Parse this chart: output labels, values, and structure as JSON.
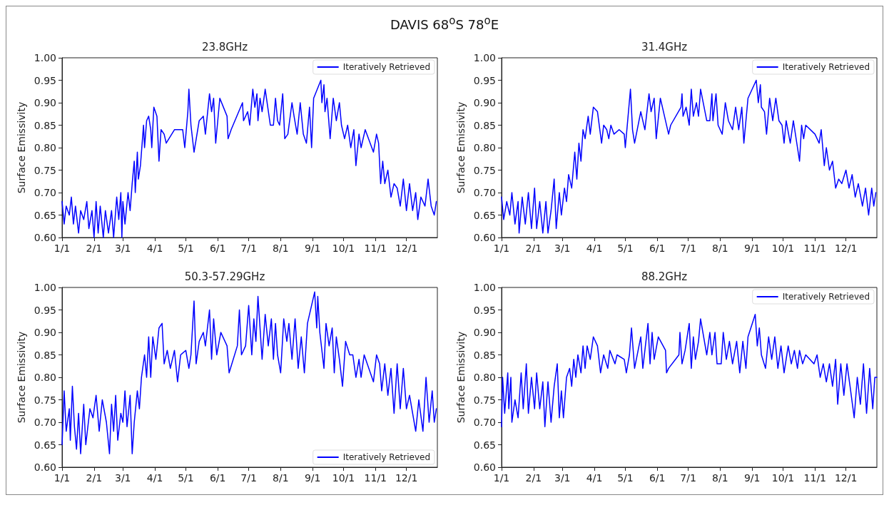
{
  "chart_data": [
    {
      "type": "line",
      "title": "DAVIS 68$^{o}$S 78$^{o}$E",
      "subtitle": "23.8GHz",
      "ylabel": "Surface Emissivity",
      "xlim": [
        "--01-01",
        "--12-31"
      ],
      "xticks": [
        {
          "value": "--01-01",
          "label": "1/1"
        },
        {
          "value": "--02-01",
          "label": "2/1"
        },
        {
          "value": "--03-01",
          "label": "3/1"
        },
        {
          "value": "--04-01",
          "label": "4/1"
        },
        {
          "value": "--05-01",
          "label": "5/1"
        },
        {
          "value": "--06-01",
          "label": "6/1"
        },
        {
          "value": "--07-01",
          "label": "7/1"
        },
        {
          "value": "--08-01",
          "label": "8/1"
        },
        {
          "value": "--09-01",
          "label": "9/1"
        },
        {
          "value": "--10-01",
          "label": "10/1"
        },
        {
          "value": "--11-01",
          "label": "11/1"
        },
        {
          "value": "--12-01",
          "label": "12/1"
        }
      ],
      "ylim": [
        0.6,
        1.0
      ],
      "yticks": [
        {
          "value": 0.6,
          "label": "0.60"
        },
        {
          "value": 0.65,
          "label": "0.65"
        },
        {
          "value": 0.7,
          "label": "0.70"
        },
        {
          "value": 0.75,
          "label": "0.75"
        },
        {
          "value": 0.8,
          "label": "0.80"
        },
        {
          "value": 0.85,
          "label": "0.85"
        },
        {
          "value": 0.9,
          "label": "0.90"
        },
        {
          "value": 0.95,
          "label": "0.95"
        },
        {
          "value": 1.0,
          "label": "1.00"
        }
      ],
      "grid": false,
      "legend": "top right",
      "marker": "none",
      "line_style": "solid",
      "series": [
        {
          "name": "Iteratively Retrieved",
          "color": "#0000ff",
          "x": [
            "--01-01",
            "--01-03",
            "--01-05",
            "--01-08",
            "--01-10",
            "--01-12",
            "--01-14",
            "--01-17",
            "--01-19",
            "--01-22",
            "--01-25",
            "--01-27",
            "--01-30",
            "--02-01",
            "--02-03",
            "--02-05",
            "--02-07",
            "--02-10",
            "--02-12",
            "--02-15",
            "--02-18",
            "--02-20",
            "--02-23",
            "--02-25",
            "--02-27",
            "--02-28",
            "--03-01",
            "--03-03",
            "--03-06",
            "--03-08",
            "--03-10",
            "--03-12",
            "--03-13",
            "--03-15",
            "--03-16",
            "--03-18",
            "--03-20",
            "--03-21",
            "--03-22",
            "--03-24",
            "--03-26",
            "--03-28",
            "--03-29",
            "--03-31",
            "--04-03",
            "--04-05",
            "--04-07",
            "--04-10",
            "--04-12",
            "--04-20",
            "--04-28",
            "--04-30",
            "--05-03",
            "--05-04",
            "--05-06",
            "--05-09",
            "--05-14",
            "--05-18",
            "--05-20",
            "--05-24",
            "--05-26",
            "--05-28",
            "--05-30",
            "--06-03",
            "--06-10",
            "--06-11",
            "--06-14",
            "--06-25",
            "--06-26",
            "--06-30",
            "--07-02",
            "--07-05",
            "--07-07",
            "--07-09",
            "--07-10",
            "--07-12",
            "--07-14",
            "--07-17",
            "--07-22",
            "--07-25",
            "--07-27",
            "--07-29",
            "--07-31",
            "--08-03",
            "--08-05",
            "--08-08",
            "--08-12",
            "--08-14",
            "--08-17",
            "--08-20",
            "--08-23",
            "--08-26",
            "--08-29",
            "--08-31",
            "--09-02",
            "--09-09",
            "--09-10",
            "--09-12",
            "--09-13",
            "--09-15",
            "--09-18",
            "--09-21",
            "--09-24",
            "--09-27",
            "--09-29",
            "--10-02",
            "--10-05",
            "--10-08",
            "--10-11",
            "--10-13",
            "--10-16",
            "--10-18",
            "--10-22",
            "--10-30",
            "--11-02",
            "--11-04",
            "--11-06",
            "--11-08",
            "--11-10",
            "--11-13",
            "--11-16",
            "--11-19",
            "--11-22",
            "--11-25",
            "--11-28",
            "--12-01",
            "--12-04",
            "--12-07",
            "--12-10",
            "--12-12",
            "--12-15",
            "--12-19",
            "--12-22",
            "--12-25",
            "--12-28",
            "--12-30"
          ],
          "values": [
            0.68,
            0.63,
            0.67,
            0.65,
            0.69,
            0.63,
            0.67,
            0.61,
            0.66,
            0.64,
            0.68,
            0.62,
            0.66,
            0.6,
            0.68,
            0.61,
            0.67,
            0.6,
            0.66,
            0.61,
            0.66,
            0.6,
            0.69,
            0.64,
            0.7,
            0.6,
            0.68,
            0.63,
            0.7,
            0.66,
            0.72,
            0.77,
            0.7,
            0.79,
            0.73,
            0.76,
            0.82,
            0.85,
            0.8,
            0.86,
            0.87,
            0.84,
            0.8,
            0.89,
            0.87,
            0.77,
            0.84,
            0.83,
            0.81,
            0.84,
            0.84,
            0.8,
            0.88,
            0.93,
            0.85,
            0.79,
            0.86,
            0.87,
            0.83,
            0.92,
            0.88,
            0.91,
            0.81,
            0.91,
            0.87,
            0.82,
            0.84,
            0.9,
            0.86,
            0.88,
            0.85,
            0.93,
            0.89,
            0.92,
            0.86,
            0.91,
            0.88,
            0.93,
            0.85,
            0.85,
            0.91,
            0.86,
            0.85,
            0.92,
            0.82,
            0.83,
            0.9,
            0.87,
            0.83,
            0.9,
            0.83,
            0.81,
            0.89,
            0.8,
            0.91,
            0.95,
            0.9,
            0.94,
            0.88,
            0.91,
            0.82,
            0.91,
            0.86,
            0.9,
            0.85,
            0.82,
            0.85,
            0.8,
            0.84,
            0.76,
            0.83,
            0.8,
            0.84,
            0.79,
            0.83,
            0.81,
            0.72,
            0.77,
            0.72,
            0.75,
            0.69,
            0.72,
            0.71,
            0.67,
            0.73,
            0.66,
            0.72,
            0.66,
            0.7,
            0.64,
            0.69,
            0.67,
            0.73,
            0.67,
            0.65,
            0.68
          ]
        }
      ]
    },
    {
      "type": "line",
      "title": "31.4GHz",
      "ylabel": "Surface Emissivity",
      "xlim": [
        "--01-01",
        "--12-31"
      ],
      "xticks": [
        {
          "value": "--01-01",
          "label": "1/1"
        },
        {
          "value": "--02-01",
          "label": "2/1"
        },
        {
          "value": "--03-01",
          "label": "3/1"
        },
        {
          "value": "--04-01",
          "label": "4/1"
        },
        {
          "value": "--05-01",
          "label": "5/1"
        },
        {
          "value": "--06-01",
          "label": "6/1"
        },
        {
          "value": "--07-01",
          "label": "7/1"
        },
        {
          "value": "--08-01",
          "label": "8/1"
        },
        {
          "value": "--09-01",
          "label": "9/1"
        },
        {
          "value": "--10-01",
          "label": "10/1"
        },
        {
          "value": "--11-01",
          "label": "11/1"
        },
        {
          "value": "--12-01",
          "label": "12/1"
        }
      ],
      "ylim": [
        0.6,
        1.0
      ],
      "yticks": [
        {
          "value": 0.6,
          "label": "0.60"
        },
        {
          "value": 0.65,
          "label": "0.65"
        },
        {
          "value": 0.7,
          "label": "0.70"
        },
        {
          "value": 0.75,
          "label": "0.75"
        },
        {
          "value": 0.8,
          "label": "0.80"
        },
        {
          "value": 0.85,
          "label": "0.85"
        },
        {
          "value": 0.9,
          "label": "0.90"
        },
        {
          "value": 0.95,
          "label": "0.95"
        },
        {
          "value": 1.0,
          "label": "1.00"
        }
      ],
      "grid": false,
      "legend": "top right",
      "marker": "none",
      "line_style": "solid",
      "series": [
        {
          "name": "Iteratively Retrieved",
          "color": "#0000ff",
          "x": [
            "--01-01",
            "--01-03",
            "--01-06",
            "--01-09",
            "--01-11",
            "--01-14",
            "--01-17",
            "--01-18",
            "--01-21",
            "--01-24",
            "--01-27",
            "--01-30",
            "--02-02",
            "--02-04",
            "--02-07",
            "--02-10",
            "--02-13",
            "--02-15",
            "--02-18",
            "--02-21",
            "--02-23",
            "--02-26",
            "--02-28",
            "--03-03",
            "--03-05",
            "--03-07",
            "--03-10",
            "--03-13",
            "--03-15",
            "--03-17",
            "--03-19",
            "--03-21",
            "--03-23",
            "--03-26",
            "--03-28",
            "--03-31",
            "--04-04",
            "--04-08",
            "--04-10",
            "--04-13",
            "--04-15",
            "--04-17",
            "--04-20",
            "--04-25",
            "--04-30",
            "--05-01",
            "--05-06",
            "--05-08",
            "--05-10",
            "--05-16",
            "--05-20",
            "--05-24",
            "--05-26",
            "--05-29",
            "--05-31",
            "--06-04",
            "--06-12",
            "--06-14",
            "--06-24",
            "--06-25",
            "--06-26",
            "--06-29",
            "--07-02",
            "--07-04",
            "--07-06",
            "--07-09",
            "--07-11",
            "--07-13",
            "--07-19",
            "--07-22",
            "--07-24",
            "--07-25",
            "--07-28",
            "--07-30",
            "--08-03",
            "--08-06",
            "--08-09",
            "--08-13",
            "--08-16",
            "--08-19",
            "--08-22",
            "--08-24",
            "--08-28",
            "--09-05",
            "--09-07",
            "--09-09",
            "--09-10",
            "--09-13",
            "--09-15",
            "--09-18",
            "--09-21",
            "--09-24",
            "--09-27",
            "--09-30",
            "--10-02",
            "--10-04",
            "--10-08",
            "--10-11",
            "--10-15",
            "--10-17",
            "--10-19",
            "--10-21",
            "--10-23",
            "--11-01",
            "--11-05",
            "--11-07",
            "--11-10",
            "--11-12",
            "--11-15",
            "--11-18",
            "--11-21",
            "--11-24",
            "--11-27",
            "--12-01",
            "--12-04",
            "--12-07",
            "--12-10",
            "--12-13",
            "--12-17",
            "--12-20",
            "--12-23",
            "--12-26",
            "--12-28",
            "--12-30"
          ],
          "values": [
            0.69,
            0.64,
            0.68,
            0.65,
            0.7,
            0.63,
            0.68,
            0.61,
            0.69,
            0.63,
            0.7,
            0.62,
            0.71,
            0.62,
            0.68,
            0.61,
            0.68,
            0.61,
            0.66,
            0.73,
            0.62,
            0.7,
            0.65,
            0.71,
            0.68,
            0.74,
            0.71,
            0.79,
            0.73,
            0.81,
            0.77,
            0.84,
            0.82,
            0.87,
            0.83,
            0.89,
            0.88,
            0.81,
            0.85,
            0.84,
            0.82,
            0.85,
            0.83,
            0.84,
            0.83,
            0.8,
            0.93,
            0.84,
            0.81,
            0.88,
            0.84,
            0.92,
            0.88,
            0.91,
            0.82,
            0.91,
            0.83,
            0.85,
            0.89,
            0.92,
            0.87,
            0.89,
            0.85,
            0.93,
            0.87,
            0.9,
            0.87,
            0.93,
            0.86,
            0.86,
            0.92,
            0.86,
            0.92,
            0.85,
            0.83,
            0.9,
            0.86,
            0.84,
            0.89,
            0.84,
            0.89,
            0.81,
            0.91,
            0.95,
            0.9,
            0.94,
            0.89,
            0.88,
            0.83,
            0.91,
            0.86,
            0.91,
            0.86,
            0.85,
            0.81,
            0.86,
            0.81,
            0.86,
            0.8,
            0.77,
            0.85,
            0.82,
            0.85,
            0.83,
            0.81,
            0.84,
            0.76,
            0.8,
            0.75,
            0.77,
            0.71,
            0.73,
            0.72,
            0.75,
            0.71,
            0.74,
            0.69,
            0.72,
            0.67,
            0.71,
            0.65,
            0.71,
            0.67,
            0.7
          ]
        }
      ]
    },
    {
      "type": "line",
      "title": "50.3-57.29GHz",
      "ylabel": "Surface Emissivity",
      "xlim": [
        "--01-01",
        "--12-31"
      ],
      "xticks": [
        {
          "value": "--01-01",
          "label": "1/1"
        },
        {
          "value": "--02-01",
          "label": "2/1"
        },
        {
          "value": "--03-01",
          "label": "3/1"
        },
        {
          "value": "--04-01",
          "label": "4/1"
        },
        {
          "value": "--05-01",
          "label": "5/1"
        },
        {
          "value": "--06-01",
          "label": "6/1"
        },
        {
          "value": "--07-01",
          "label": "7/1"
        },
        {
          "value": "--08-01",
          "label": "8/1"
        },
        {
          "value": "--09-01",
          "label": "9/1"
        },
        {
          "value": "--10-01",
          "label": "10/1"
        },
        {
          "value": "--11-01",
          "label": "11/1"
        },
        {
          "value": "--12-01",
          "label": "12/1"
        }
      ],
      "ylim": [
        0.6,
        1.0
      ],
      "yticks": [
        {
          "value": 0.6,
          "label": "0.60"
        },
        {
          "value": 0.65,
          "label": "0.65"
        },
        {
          "value": 0.7,
          "label": "0.70"
        },
        {
          "value": 0.75,
          "label": "0.75"
        },
        {
          "value": 0.8,
          "label": "0.80"
        },
        {
          "value": 0.85,
          "label": "0.85"
        },
        {
          "value": 0.9,
          "label": "0.90"
        },
        {
          "value": 0.95,
          "label": "0.95"
        },
        {
          "value": 1.0,
          "label": "1.00"
        }
      ],
      "grid": false,
      "legend": "bottom right",
      "marker": "none",
      "line_style": "solid",
      "series": [
        {
          "name": "Iteratively Retrieved",
          "color": "#0000ff",
          "x": [
            "--01-01",
            "--01-03",
            "--01-05",
            "--01-08",
            "--01-09",
            "--01-11",
            "--01-13",
            "--01-15",
            "--01-17",
            "--01-19",
            "--01-22",
            "--01-24",
            "--01-28",
            "--01-31",
            "--02-03",
            "--02-06",
            "--02-09",
            "--02-13",
            "--02-16",
            "--02-18",
            "--02-20",
            "--02-22",
            "--02-24",
            "--02-27",
            "--03-01",
            "--03-03",
            "--03-05",
            "--03-08",
            "--03-10",
            "--03-12",
            "--03-15",
            "--03-17",
            "--03-19",
            "--03-22",
            "--03-24",
            "--03-26",
            "--03-28",
            "--03-30",
            "--04-02",
            "--04-05",
            "--04-08",
            "--04-10",
            "--04-13",
            "--04-16",
            "--04-20",
            "--04-23",
            "--04-26",
            "--05-01",
            "--05-04",
            "--05-06",
            "--05-09",
            "--05-11",
            "--05-14",
            "--05-18",
            "--05-20",
            "--05-24",
            "--05-26",
            "--05-28",
            "--05-31",
            "--06-04",
            "--06-10",
            "--06-12",
            "--06-20",
            "--06-22",
            "--06-24",
            "--06-28",
            "--07-01",
            "--07-04",
            "--07-06",
            "--07-08",
            "--07-10",
            "--07-14",
            "--07-17",
            "--07-20",
            "--07-23",
            "--07-25",
            "--07-27",
            "--07-29",
            "--08-01",
            "--08-04",
            "--08-07",
            "--08-09",
            "--08-12",
            "--08-15",
            "--08-18",
            "--08-21",
            "--08-24",
            "--08-27",
            "--09-03",
            "--09-05",
            "--09-06",
            "--09-08",
            "--09-12",
            "--09-14",
            "--09-17",
            "--09-20",
            "--09-22",
            "--09-24",
            "--09-27",
            "--09-30",
            "--10-03",
            "--10-07",
            "--10-10",
            "--10-13",
            "--10-16",
            "--10-18",
            "--10-21",
            "--10-30",
            "--11-02",
            "--11-05",
            "--11-07",
            "--11-10",
            "--11-13",
            "--11-16",
            "--11-19",
            "--11-22",
            "--11-25",
            "--11-28",
            "--12-01",
            "--12-04",
            "--12-07",
            "--12-10",
            "--12-13",
            "--12-17",
            "--12-20",
            "--12-23",
            "--12-26",
            "--12-28",
            "--12-30"
          ],
          "values": [
            0.65,
            0.77,
            0.68,
            0.73,
            0.66,
            0.78,
            0.69,
            0.64,
            0.72,
            0.63,
            0.74,
            0.65,
            0.73,
            0.71,
            0.76,
            0.68,
            0.75,
            0.7,
            0.63,
            0.74,
            0.68,
            0.76,
            0.66,
            0.72,
            0.7,
            0.77,
            0.69,
            0.76,
            0.63,
            0.7,
            0.77,
            0.73,
            0.8,
            0.85,
            0.8,
            0.89,
            0.8,
            0.89,
            0.84,
            0.91,
            0.92,
            0.83,
            0.86,
            0.82,
            0.86,
            0.79,
            0.85,
            0.86,
            0.82,
            0.85,
            0.97,
            0.83,
            0.88,
            0.9,
            0.87,
            0.95,
            0.84,
            0.93,
            0.85,
            0.9,
            0.87,
            0.81,
            0.87,
            0.95,
            0.85,
            0.87,
            0.96,
            0.85,
            0.93,
            0.88,
            0.98,
            0.84,
            0.94,
            0.87,
            0.93,
            0.84,
            0.92,
            0.85,
            0.81,
            0.93,
            0.88,
            0.92,
            0.84,
            0.93,
            0.82,
            0.89,
            0.81,
            0.92,
            0.99,
            0.91,
            0.98,
            0.9,
            0.82,
            0.92,
            0.87,
            0.91,
            0.81,
            0.89,
            0.84,
            0.78,
            0.88,
            0.85,
            0.85,
            0.8,
            0.84,
            0.8,
            0.85,
            0.79,
            0.85,
            0.83,
            0.77,
            0.83,
            0.76,
            0.82,
            0.72,
            0.83,
            0.73,
            0.82,
            0.73,
            0.76,
            0.72,
            0.68,
            0.75,
            0.68,
            0.8,
            0.7,
            0.77,
            0.7,
            0.73
          ]
        }
      ]
    },
    {
      "type": "line",
      "title": "88.2GHz",
      "ylabel": "Surface Emissivity",
      "xlim": [
        "--01-01",
        "--12-31"
      ],
      "xticks": [
        {
          "value": "--01-01",
          "label": "1/1"
        },
        {
          "value": "--02-01",
          "label": "2/1"
        },
        {
          "value": "--03-01",
          "label": "3/1"
        },
        {
          "value": "--04-01",
          "label": "4/1"
        },
        {
          "value": "--05-01",
          "label": "5/1"
        },
        {
          "value": "--06-01",
          "label": "6/1"
        },
        {
          "value": "--07-01",
          "label": "7/1"
        },
        {
          "value": "--08-01",
          "label": "8/1"
        },
        {
          "value": "--09-01",
          "label": "9/1"
        },
        {
          "value": "--10-01",
          "label": "10/1"
        },
        {
          "value": "--11-01",
          "label": "11/1"
        },
        {
          "value": "--12-01",
          "label": "12/1"
        }
      ],
      "ylim": [
        0.6,
        1.0
      ],
      "yticks": [
        {
          "value": 0.6,
          "label": "0.60"
        },
        {
          "value": 0.65,
          "label": "0.65"
        },
        {
          "value": 0.7,
          "label": "0.70"
        },
        {
          "value": 0.75,
          "label": "0.75"
        },
        {
          "value": 0.8,
          "label": "0.80"
        },
        {
          "value": 0.85,
          "label": "0.85"
        },
        {
          "value": 0.9,
          "label": "0.90"
        },
        {
          "value": 0.95,
          "label": "0.95"
        },
        {
          "value": 1.0,
          "label": "1.00"
        }
      ],
      "grid": false,
      "legend": "top right",
      "marker": "none",
      "line_style": "solid",
      "series": [
        {
          "name": "Iteratively Retrieved",
          "color": "#0000ff",
          "x": [
            "--01-01",
            "--01-02",
            "--01-04",
            "--01-07",
            "--01-08",
            "--01-10",
            "--01-11",
            "--01-14",
            "--01-17",
            "--01-20",
            "--01-22",
            "--01-25",
            "--01-27",
            "--01-30",
            "--02-02",
            "--02-04",
            "--02-07",
            "--02-10",
            "--02-12",
            "--02-15",
            "--02-18",
            "--02-21",
            "--02-24",
            "--02-26",
            "--02-28",
            "--03-02",
            "--03-05",
            "--03-08",
            "--03-10",
            "--03-12",
            "--03-14",
            "--03-16",
            "--03-19",
            "--03-21",
            "--03-23",
            "--03-25",
            "--03-28",
            "--03-31",
            "--04-04",
            "--04-07",
            "--04-10",
            "--04-14",
            "--04-16",
            "--04-21",
            "--04-23",
            "--04-30",
            "--05-02",
            "--05-05",
            "--05-07",
            "--05-10",
            "--05-16",
            "--05-18",
            "--05-23",
            "--05-25",
            "--05-27",
            "--05-29",
            "--06-02",
            "--06-09",
            "--06-10",
            "--06-12",
            "--06-22",
            "--06-23",
            "--06-25",
            "--06-28",
            "--07-02",
            "--07-04",
            "--07-06",
            "--07-08",
            "--07-11",
            "--07-13",
            "--07-19",
            "--07-22",
            "--07-24",
            "--07-27",
            "--07-29",
            "--08-02",
            "--08-04",
            "--08-07",
            "--08-10",
            "--08-13",
            "--08-17",
            "--08-20",
            "--08-23",
            "--08-26",
            "--08-28",
            "--09-04",
            "--09-06",
            "--09-08",
            "--09-10",
            "--09-14",
            "--09-17",
            "--09-20",
            "--09-23",
            "--09-26",
            "--09-29",
            "--10-02",
            "--10-06",
            "--10-09",
            "--10-12",
            "--10-15",
            "--10-17",
            "--10-20",
            "--10-23",
            "--10-31",
            "--11-03",
            "--11-06",
            "--11-09",
            "--11-12",
            "--11-15",
            "--11-18",
            "--11-21",
            "--11-23",
            "--11-26",
            "--11-29",
            "--12-02",
            "--12-05",
            "--12-09",
            "--12-12",
            "--12-15",
            "--12-18",
            "--12-21",
            "--12-24",
            "--12-27",
            "--12-29",
            "--12-31"
          ],
          "values": [
            0.69,
            0.8,
            0.72,
            0.81,
            0.73,
            0.8,
            0.7,
            0.75,
            0.71,
            0.81,
            0.73,
            0.83,
            0.72,
            0.8,
            0.73,
            0.81,
            0.73,
            0.79,
            0.69,
            0.79,
            0.7,
            0.78,
            0.83,
            0.71,
            0.77,
            0.71,
            0.8,
            0.82,
            0.78,
            0.84,
            0.8,
            0.85,
            0.81,
            0.87,
            0.82,
            0.87,
            0.84,
            0.89,
            0.87,
            0.81,
            0.85,
            0.82,
            0.86,
            0.83,
            0.85,
            0.84,
            0.81,
            0.85,
            0.91,
            0.82,
            0.89,
            0.82,
            0.92,
            0.83,
            0.9,
            0.84,
            0.89,
            0.86,
            0.81,
            0.82,
            0.85,
            0.9,
            0.83,
            0.86,
            0.92,
            0.82,
            0.89,
            0.84,
            0.88,
            0.93,
            0.85,
            0.9,
            0.85,
            0.9,
            0.83,
            0.83,
            0.9,
            0.84,
            0.88,
            0.83,
            0.88,
            0.81,
            0.88,
            0.82,
            0.89,
            0.94,
            0.87,
            0.91,
            0.85,
            0.82,
            0.89,
            0.84,
            0.89,
            0.82,
            0.87,
            0.81,
            0.87,
            0.83,
            0.86,
            0.82,
            0.86,
            0.83,
            0.85,
            0.83,
            0.85,
            0.8,
            0.83,
            0.79,
            0.83,
            0.78,
            0.84,
            0.74,
            0.83,
            0.76,
            0.83,
            0.78,
            0.71,
            0.8,
            0.74,
            0.83,
            0.72,
            0.82,
            0.73,
            0.8,
            0.8
          ]
        }
      ]
    }
  ]
}
